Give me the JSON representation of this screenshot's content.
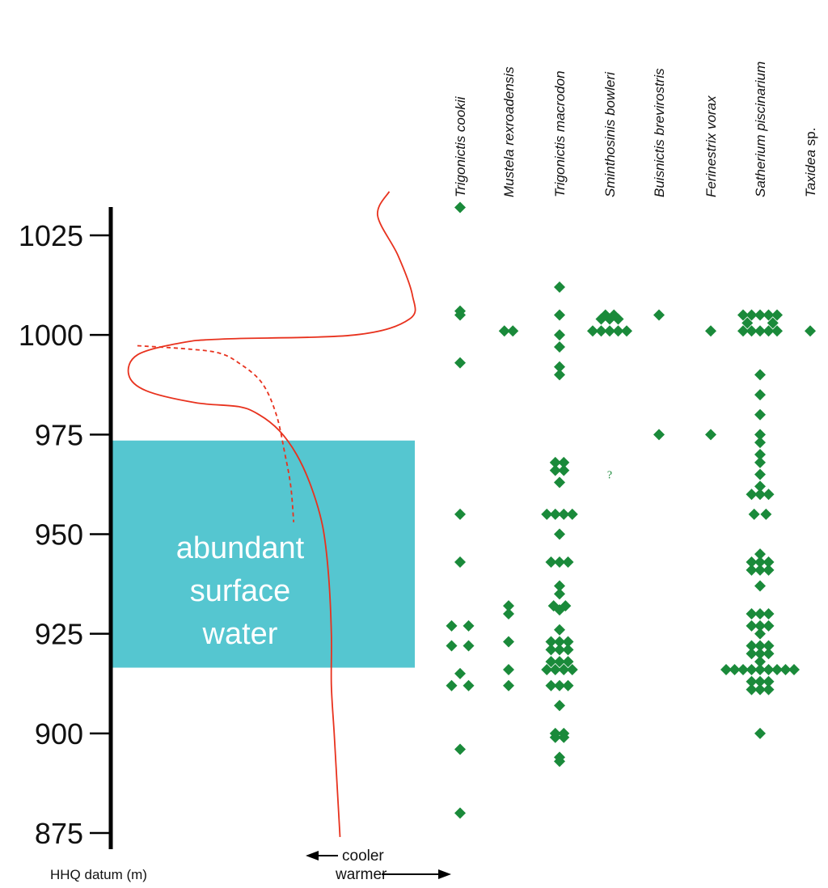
{
  "chart_data": {
    "type": "scatter",
    "ylabel": "HHQ datum (m)",
    "ylim": [
      872,
      1035
    ],
    "yticks": [
      875,
      900,
      925,
      950,
      975,
      1000,
      1025
    ],
    "band": {
      "y_range": [
        916.5,
        973.5
      ],
      "lines": [
        "abundant",
        "surface",
        "water"
      ],
      "color": "#55c6d0"
    },
    "temperature": {
      "cooler_label": "cooler",
      "warmer_label": "warmer",
      "color": "#e8321e",
      "solid": [
        [
          0.92,
          1036
        ],
        [
          0.88,
          1030
        ],
        [
          0.95,
          1020
        ],
        [
          1.0,
          1010
        ],
        [
          0.99,
          1004
        ],
        [
          0.8,
          1000
        ],
        [
          0.35,
          999
        ],
        [
          0.2,
          998
        ],
        [
          0.05,
          995
        ],
        [
          0.02,
          990
        ],
        [
          0.08,
          986
        ],
        [
          0.25,
          983
        ],
        [
          0.4,
          982
        ],
        [
          0.47,
          980
        ],
        [
          0.54,
          976
        ],
        [
          0.6,
          970
        ],
        [
          0.65,
          962
        ],
        [
          0.69,
          952
        ],
        [
          0.71,
          940
        ],
        [
          0.72,
          925
        ],
        [
          0.72,
          912
        ],
        [
          0.73,
          900
        ],
        [
          0.74,
          887
        ],
        [
          0.75,
          874
        ]
      ],
      "dashed": [
        [
          0.05,
          997.3
        ],
        [
          0.22,
          996.5
        ],
        [
          0.33,
          995.5
        ],
        [
          0.4,
          993
        ],
        [
          0.48,
          988
        ],
        [
          0.53,
          980
        ],
        [
          0.56,
          970
        ],
        [
          0.58,
          962
        ],
        [
          0.59,
          953
        ]
      ]
    },
    "species": [
      {
        "name": "Trigonictis cookii",
        "points": [
          [
            0,
            1032
          ],
          [
            0,
            1006
          ],
          [
            0,
            1005
          ],
          [
            0,
            993
          ],
          [
            0,
            955
          ],
          [
            0,
            943
          ],
          [
            -1,
            927
          ],
          [
            1,
            927
          ],
          [
            -1,
            922
          ],
          [
            1,
            922
          ],
          [
            0,
            915
          ],
          [
            -1,
            912
          ],
          [
            1,
            912
          ],
          [
            0,
            896
          ],
          [
            0,
            880
          ]
        ]
      },
      {
        "name": "Mustela rexroadensis",
        "points": [
          [
            -0.5,
            1001
          ],
          [
            0.5,
            1001
          ],
          [
            0,
            932
          ],
          [
            0,
            930
          ],
          [
            0,
            923
          ],
          [
            0,
            916
          ],
          [
            0,
            912
          ]
        ]
      },
      {
        "name": "Trigonictis macrodon",
        "points": [
          [
            0,
            1012
          ],
          [
            0,
            1005
          ],
          [
            0,
            1000
          ],
          [
            0,
            997
          ],
          [
            0,
            992
          ],
          [
            0,
            990
          ],
          [
            -0.5,
            968
          ],
          [
            0.5,
            968
          ],
          [
            -0.5,
            966
          ],
          [
            0.5,
            966
          ],
          [
            0,
            963
          ],
          [
            -1.5,
            955
          ],
          [
            -0.5,
            955
          ],
          [
            0.5,
            955
          ],
          [
            1.5,
            955
          ],
          [
            0,
            950
          ],
          [
            -1,
            943
          ],
          [
            0,
            943
          ],
          [
            1,
            943
          ],
          [
            0,
            937
          ],
          [
            0,
            935
          ],
          [
            -0.7,
            932
          ],
          [
            0.7,
            932
          ],
          [
            0,
            931
          ],
          [
            0,
            926
          ],
          [
            -1,
            923
          ],
          [
            0,
            923
          ],
          [
            1,
            923
          ],
          [
            -1,
            921
          ],
          [
            0,
            921
          ],
          [
            1,
            921
          ],
          [
            -1,
            918
          ],
          [
            0,
            918
          ],
          [
            1,
            918
          ],
          [
            -1.5,
            916
          ],
          [
            -0.5,
            916
          ],
          [
            0.5,
            916
          ],
          [
            1.5,
            916
          ],
          [
            0,
            912
          ],
          [
            -1,
            912
          ],
          [
            1,
            912
          ],
          [
            0,
            907
          ],
          [
            -0.5,
            900
          ],
          [
            0.5,
            900
          ],
          [
            -0.5,
            899
          ],
          [
            0.5,
            899
          ],
          [
            0,
            894
          ],
          [
            0,
            893
          ]
        ]
      },
      {
        "name": "Sminthosinis bowleri",
        "uncertain": [
          [
            0,
            965
          ]
        ],
        "uncertain_label": "?",
        "points": [
          [
            -0.5,
            1005
          ],
          [
            0.5,
            1005
          ],
          [
            -1,
            1004
          ],
          [
            0,
            1004
          ],
          [
            1,
            1004
          ],
          [
            -2,
            1001
          ],
          [
            -1,
            1001
          ],
          [
            0,
            1001
          ],
          [
            1,
            1001
          ],
          [
            2,
            1001
          ]
        ]
      },
      {
        "name": "Buisnictis brevirostris",
        "points": [
          [
            0,
            1005
          ],
          [
            0,
            975
          ]
        ]
      },
      {
        "name": "Ferinestrix vorax",
        "points": [
          [
            0,
            1001
          ],
          [
            0,
            975
          ]
        ]
      },
      {
        "name": "Satherium piscinarium",
        "points": [
          [
            -2,
            1005
          ],
          [
            -1,
            1005
          ],
          [
            0,
            1005
          ],
          [
            1,
            1005
          ],
          [
            2,
            1005
          ],
          [
            -1.5,
            1003
          ],
          [
            1.5,
            1003
          ],
          [
            -2,
            1001
          ],
          [
            -1,
            1001
          ],
          [
            0,
            1001
          ],
          [
            1,
            1001
          ],
          [
            2,
            1001
          ],
          [
            0,
            990
          ],
          [
            0,
            985
          ],
          [
            0,
            980
          ],
          [
            0,
            975
          ],
          [
            0,
            973
          ],
          [
            0,
            970
          ],
          [
            0,
            968
          ],
          [
            0,
            965
          ],
          [
            0,
            962
          ],
          [
            -1,
            960
          ],
          [
            0,
            960
          ],
          [
            1,
            960
          ],
          [
            -0.7,
            955
          ],
          [
            0.7,
            955
          ],
          [
            0,
            945
          ],
          [
            -1,
            943
          ],
          [
            0,
            943
          ],
          [
            1,
            943
          ],
          [
            -1,
            941
          ],
          [
            0,
            941
          ],
          [
            1,
            941
          ],
          [
            0,
            937
          ],
          [
            -1,
            930
          ],
          [
            0,
            930
          ],
          [
            1,
            930
          ],
          [
            -1,
            927
          ],
          [
            0,
            927
          ],
          [
            1,
            927
          ],
          [
            0,
            925
          ],
          [
            -1,
            922
          ],
          [
            0,
            922
          ],
          [
            1,
            922
          ],
          [
            -1,
            920
          ],
          [
            0,
            920
          ],
          [
            1,
            920
          ],
          [
            0,
            918
          ],
          [
            -4,
            916
          ],
          [
            -3,
            916
          ],
          [
            -2,
            916
          ],
          [
            -1,
            916
          ],
          [
            0,
            916
          ],
          [
            1,
            916
          ],
          [
            2,
            916
          ],
          [
            3,
            916
          ],
          [
            4,
            916
          ],
          [
            -1,
            913
          ],
          [
            0,
            913
          ],
          [
            1,
            913
          ],
          [
            -1,
            911
          ],
          [
            0,
            911
          ],
          [
            1,
            911
          ],
          [
            0,
            900
          ]
        ]
      },
      {
        "name": "Taxidea",
        "name_suffix": "sp.",
        "points": [
          [
            0,
            1001
          ]
        ]
      }
    ],
    "marker_color": "#1a8a3a"
  }
}
